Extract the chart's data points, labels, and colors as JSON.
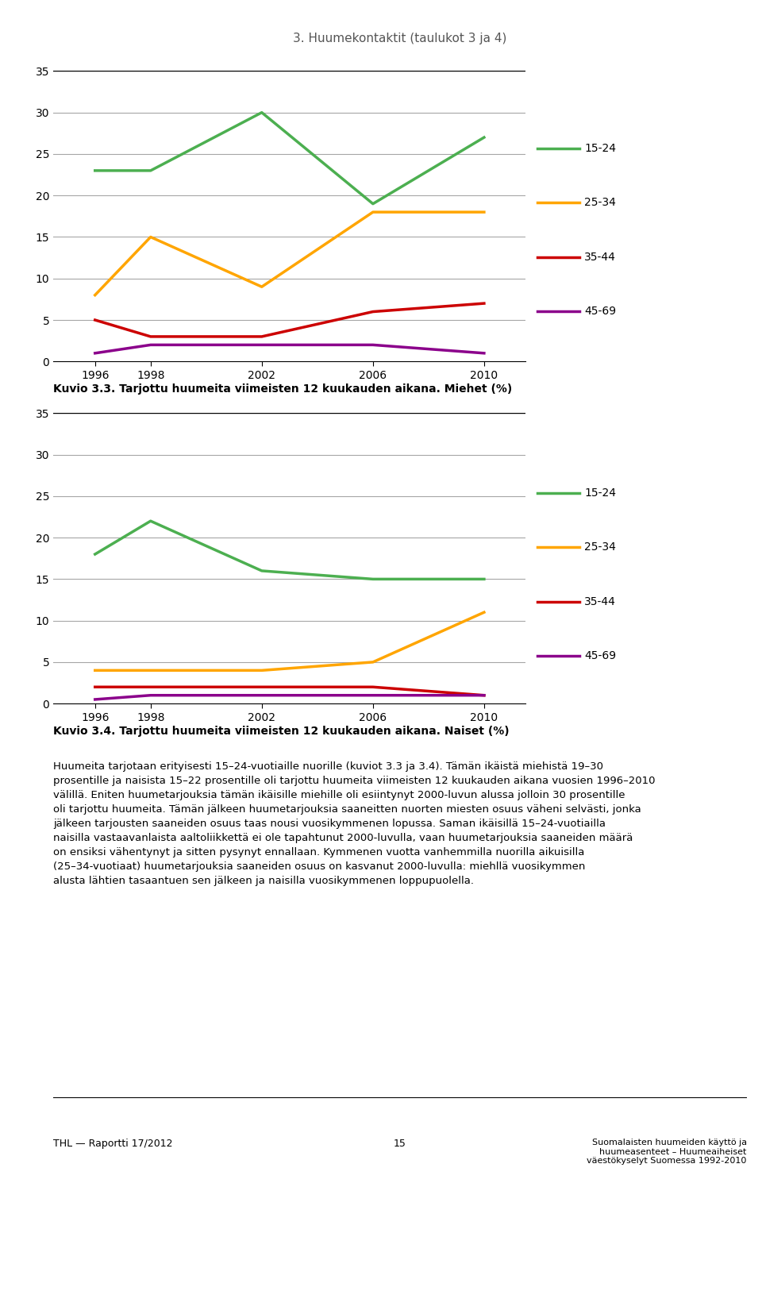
{
  "title": "3. Huumekontaktit (taulukot 3 ja 4)",
  "years": [
    1996,
    1998,
    2002,
    2006,
    2010
  ],
  "chart1": {
    "caption": "Kuvio 3.3. Tarjottu huumeita viimeisten 12 kuukauden aikana. Miehet (%)",
    "series": {
      "15-24": [
        23,
        23,
        30,
        19,
        27
      ],
      "25-34": [
        8,
        15,
        9,
        18,
        18
      ],
      "35-44": [
        5,
        3,
        3,
        6,
        7
      ],
      "45-69": [
        1,
        2,
        2,
        2,
        1
      ]
    }
  },
  "chart2": {
    "caption": "Kuvio 3.4. Tarjottu huumeita viimeisten 12 kuukauden aikana. Naiset (%)",
    "series": {
      "15-24": [
        18,
        22,
        16,
        15,
        15
      ],
      "25-34": [
        4,
        4,
        4,
        5,
        11
      ],
      "35-44": [
        2,
        2,
        2,
        2,
        1
      ],
      "45-69": [
        0.5,
        1,
        1,
        1,
        1
      ]
    }
  },
  "colors": {
    "15-24": "#4CAF50",
    "25-34": "#FFA500",
    "35-44": "#CC0000",
    "45-69": "#8B008B"
  },
  "ylim": [
    0,
    35
  ],
  "yticks": [
    0,
    5,
    10,
    15,
    20,
    25,
    30,
    35
  ],
  "body_text": [
    "Huumeita tarjotaan erityisesti 15–24-vuotiaille nuorille (kuviot 3.3 ja 3.4).",
    "Tämän ikäistä miehistä 19–30 prosentille ja naisista 15–22 prosentille oli tarjottu huumeita viimeisten 12 kuukauden aikana vuosien",
    "1996–2010 välillä. Eniten huumetarjouksia tämän ikäisille miehille oli esiintynyt 2000-luvun alussa jolloin",
    "30 prosentille oli tarjottu huumeita. Tämän jälkeen huumetarjouksia saaneitten nuorten miesten osuus vä-",
    "heni selvästi, jonka jälkeen tarjousten saaneiden osuus taas nousi vuosikymmenen lopussa. Saman ikäisillä",
    "15–24-vuotiailla naisilla vastaavanlaista aaltoliikkettä ei ole tapahtunut 2000-luvulla, vaan huumetarjouksia",
    "saaneiden määrä on ensiksi vähentynyt ja sitten pysynyt ennallaan. Kymmenen vuotta vanhemmilla nuoril-",
    "la aikuisilla (25–34-vuotiaat) huumetarjouksia saaneiden osuus on kasvanut 2000-luvulla: miehllä vuosi-",
    "kymmen alusta lähtien tasaantuen sen jälkeen ja naisilla vuosikymmenen loppupuolella."
  ],
  "footer_left": "THL — Raportti 17/2012",
  "footer_center": "15",
  "footer_right": "Suomalaisten huumeiden käyttö ja\nhuumeasenteet – Huumeaiheiset\nväestökyselyt Suomessa 1992-2010",
  "line_width": 2.5
}
